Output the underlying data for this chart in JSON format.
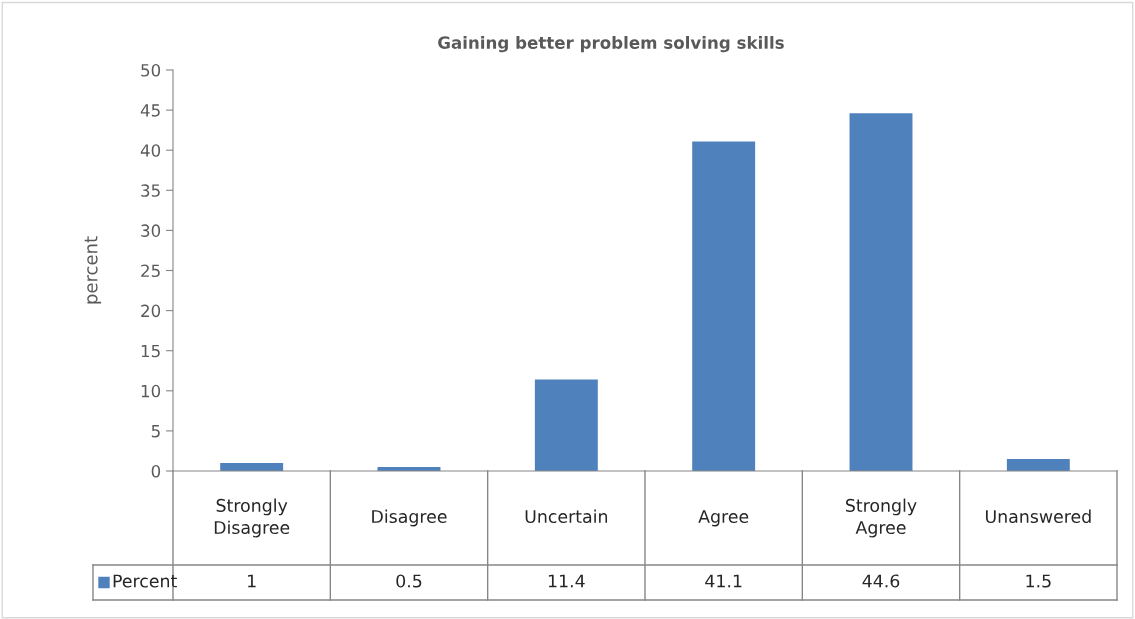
{
  "chart_data": {
    "type": "bar",
    "title": "Gaining better problem solving skills",
    "ylabel": "percent",
    "categories": [
      "Strongly Disagree",
      "Disagree",
      "Uncertain",
      "Agree",
      "Strongly Agree",
      "Unanswered"
    ],
    "series": [
      {
        "name": "Percent",
        "color": "#4f81bd",
        "values": [
          1,
          0.5,
          11.4,
          41.1,
          44.6,
          1.5
        ]
      }
    ],
    "ylim": [
      0,
      50
    ],
    "yticks": [
      0,
      5,
      10,
      15,
      20,
      25,
      30,
      35,
      40,
      45,
      50
    ],
    "grid": false,
    "legend": "bottom",
    "data_labels": true
  }
}
